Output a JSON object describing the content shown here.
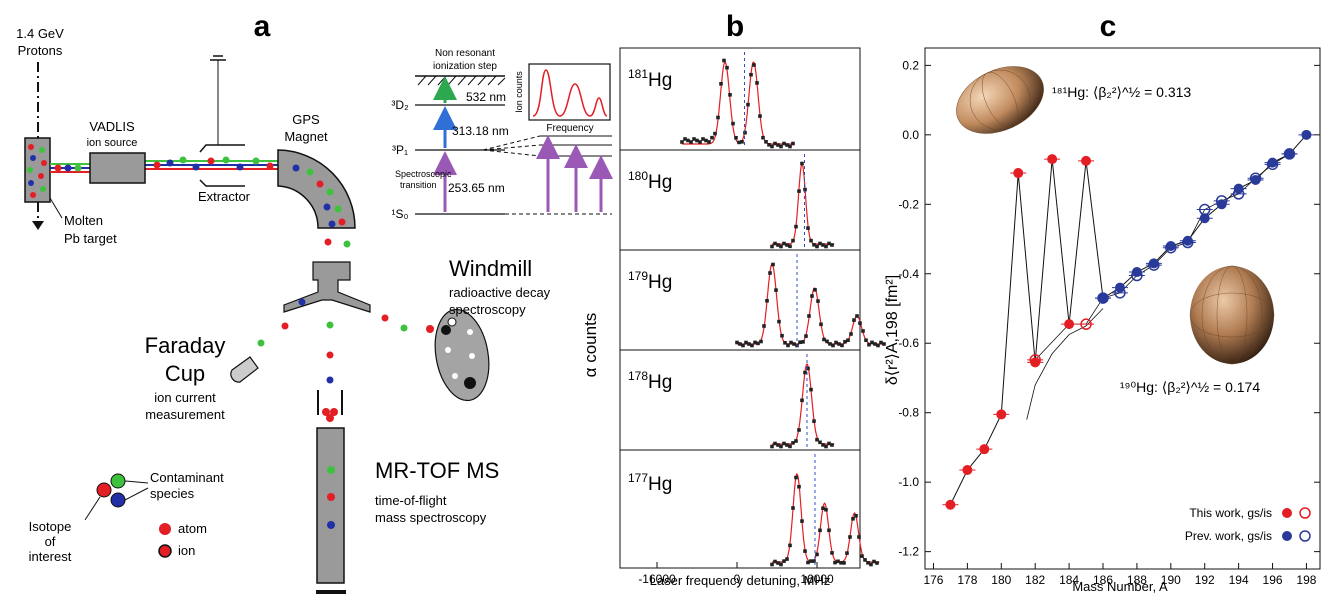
{
  "panel_a": {
    "letter": "a",
    "protons": [
      "1.4 GeV",
      "Protons"
    ],
    "vadlis": [
      "VADLIS",
      "ion source"
    ],
    "extractor": "Extractor",
    "gps": [
      "GPS",
      "Magnet"
    ],
    "target": [
      "Molten",
      "Pb target"
    ],
    "windmill_title": "Windmill",
    "windmill_desc": [
      "radioactive decay",
      "spectroscopy"
    ],
    "faraday_title": [
      "Faraday",
      "Cup"
    ],
    "faraday_desc": [
      "ion current",
      "measurement"
    ],
    "mrtof_title": "MR-TOF MS",
    "mrtof_desc": [
      "time-of-flight",
      "mass spectroscopy"
    ],
    "legend_contaminant": [
      "Contaminant",
      "species"
    ],
    "legend_isotope": [
      "Isotope",
      "of",
      "interest"
    ],
    "legend_atom": "atom",
    "legend_ion": "ion",
    "scheme": {
      "nonres": [
        "Non resonant",
        "ionization step"
      ],
      "levels": [
        "³D₂",
        "³P₁",
        "¹S₀"
      ],
      "wl1": "532 nm",
      "wl2": "313.18 nm",
      "wl3": "253.65 nm",
      "spec_trans": [
        "Spectroscopic",
        "transition"
      ],
      "ion_counts": "Ion counts",
      "frequency": "Frequency"
    },
    "colors": {
      "red": "#e31e24",
      "green": "#3ec23e",
      "blue": "#2230a8",
      "gray": "#9a9a9a",
      "purple": "#9b59b6",
      "scheme_blue": "#2f6fd6",
      "scheme_green": "#2ea84e"
    }
  },
  "panel_b": {
    "letter": "b",
    "ylabel": "α counts",
    "xlabel": "Laser frequency detuning, MHz",
    "xticks": [
      "-16000",
      "0",
      "16000"
    ],
    "isotopes": [
      {
        "mass": "181",
        "sym": "Hg"
      },
      {
        "mass": "180",
        "sym": "Hg"
      },
      {
        "mass": "179",
        "sym": "Hg"
      },
      {
        "mass": "178",
        "sym": "Hg"
      },
      {
        "mass": "177",
        "sym": "Hg"
      }
    ]
  },
  "panel_c": {
    "letter": "c",
    "note_181": "¹⁸¹Hg: ⟨β₂²⟩^½ = 0.313",
    "note_190": "¹⁹⁰Hg: ⟨β₂²⟩^½ = 0.174",
    "ylabel": "δ⟨r²⟩A,198 [fm²]",
    "xlabel": "Mass Number,   A",
    "legend_this": "This work, gs/is",
    "legend_prev": "Prev. work, gs/is"
  },
  "chart_data": [
    {
      "type": "scatter",
      "title": "",
      "xlabel": "Mass Number,   A",
      "ylabel": "δ⟨r²⟩A,198 [fm²]",
      "xlim": [
        175.5,
        198.8
      ],
      "ylim": [
        -1.25,
        0.25
      ],
      "xticks": [
        176,
        178,
        180,
        182,
        184,
        186,
        188,
        190,
        192,
        194,
        196,
        198
      ],
      "yticks": [
        0.2,
        0.0,
        -0.2,
        -0.4,
        -0.6,
        -0.8,
        -1.0,
        -1.2
      ],
      "series": [
        {
          "name": "This work, gs/is",
          "color": "#e31e24",
          "x": [
            177,
            178,
            179,
            180,
            181,
            182,
            183,
            184,
            185
          ],
          "y": [
            -1.065,
            -0.965,
            -0.905,
            -0.805,
            -0.11,
            -0.655,
            -0.07,
            -0.545,
            -0.075
          ]
        },
        {
          "name": "This work, gs/is",
          "color": "#e31e24",
          "hollow": true,
          "x": [
            182,
            185
          ],
          "y": [
            -0.648,
            -0.545
          ]
        },
        {
          "name": "Prev. work, gs/is",
          "color": "#2a3a9a",
          "x": [
            186,
            187,
            188,
            189,
            190,
            191,
            192,
            193,
            194,
            195,
            196,
            197,
            198
          ],
          "y": [
            -0.47,
            -0.44,
            -0.395,
            -0.37,
            -0.32,
            -0.305,
            -0.24,
            -0.2,
            -0.155,
            -0.13,
            -0.08,
            -0.055,
            0.0
          ]
        },
        {
          "name": "Prev. work, gs/is",
          "color": "#2a3a9a",
          "hollow": true,
          "x": [
            186,
            187,
            188,
            189,
            190,
            191,
            192,
            193,
            194,
            195,
            196,
            197
          ],
          "y": [
            -0.47,
            -0.455,
            -0.405,
            -0.375,
            -0.325,
            -0.31,
            -0.215,
            -0.19,
            -0.17,
            -0.125,
            -0.085,
            -0.055
          ]
        }
      ]
    }
  ]
}
